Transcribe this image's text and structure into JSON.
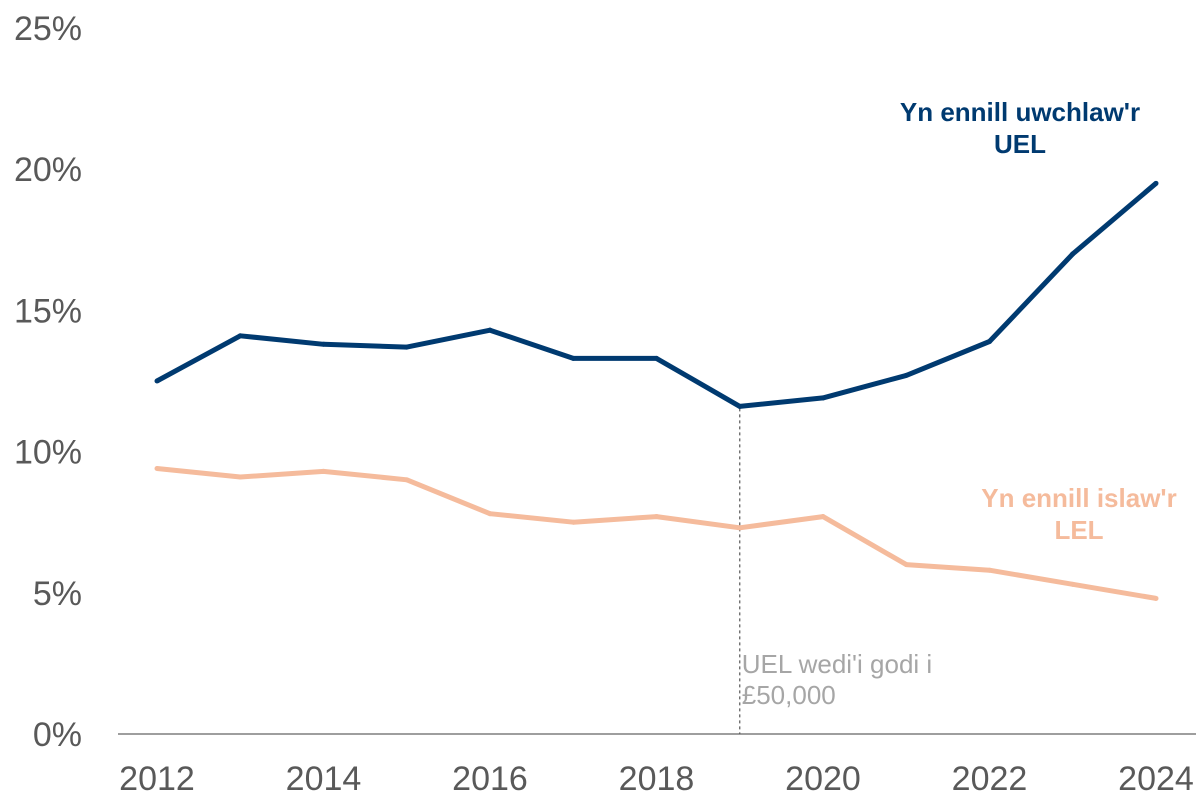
{
  "chart_data": {
    "type": "line",
    "title": "",
    "xlabel": "",
    "ylabel": "",
    "x": [
      2012,
      2013,
      2014,
      2015,
      2016,
      2017,
      2018,
      2019,
      2020,
      2021,
      2022,
      2023,
      2024
    ],
    "x_ticks": [
      "2012",
      "2014",
      "2016",
      "2018",
      "2020",
      "2022",
      "2024"
    ],
    "y_ticks": [
      "0%",
      "5%",
      "10%",
      "15%",
      "20%",
      "25%"
    ],
    "ylim": [
      0,
      25
    ],
    "grid": false,
    "series": [
      {
        "name": "Yn ennill uwchlaw'r UEL",
        "label_lines": [
          "Yn ennill uwchlaw'r",
          "UEL"
        ],
        "color": "#003a70",
        "values": [
          12.5,
          14.1,
          13.8,
          13.7,
          14.3,
          13.3,
          13.3,
          11.6,
          11.9,
          12.7,
          13.9,
          17.0,
          19.5
        ]
      },
      {
        "name": "Yn ennill islaw'r LEL",
        "label_lines": [
          "Yn ennill islaw'r",
          "LEL"
        ],
        "color": "#f5bb9c",
        "values": [
          9.4,
          9.1,
          9.3,
          9.0,
          7.8,
          7.5,
          7.7,
          7.3,
          7.7,
          6.0,
          5.8,
          5.3,
          4.8
        ]
      }
    ],
    "annotations": [
      {
        "x": 2019,
        "text_lines": [
          "UEL wedi'i godi i",
          "£50,000"
        ],
        "line_color": "#595959",
        "text_color": "#a6a6a6"
      }
    ],
    "axis_color": "#7f7f7f",
    "tick_color": "#595959"
  }
}
